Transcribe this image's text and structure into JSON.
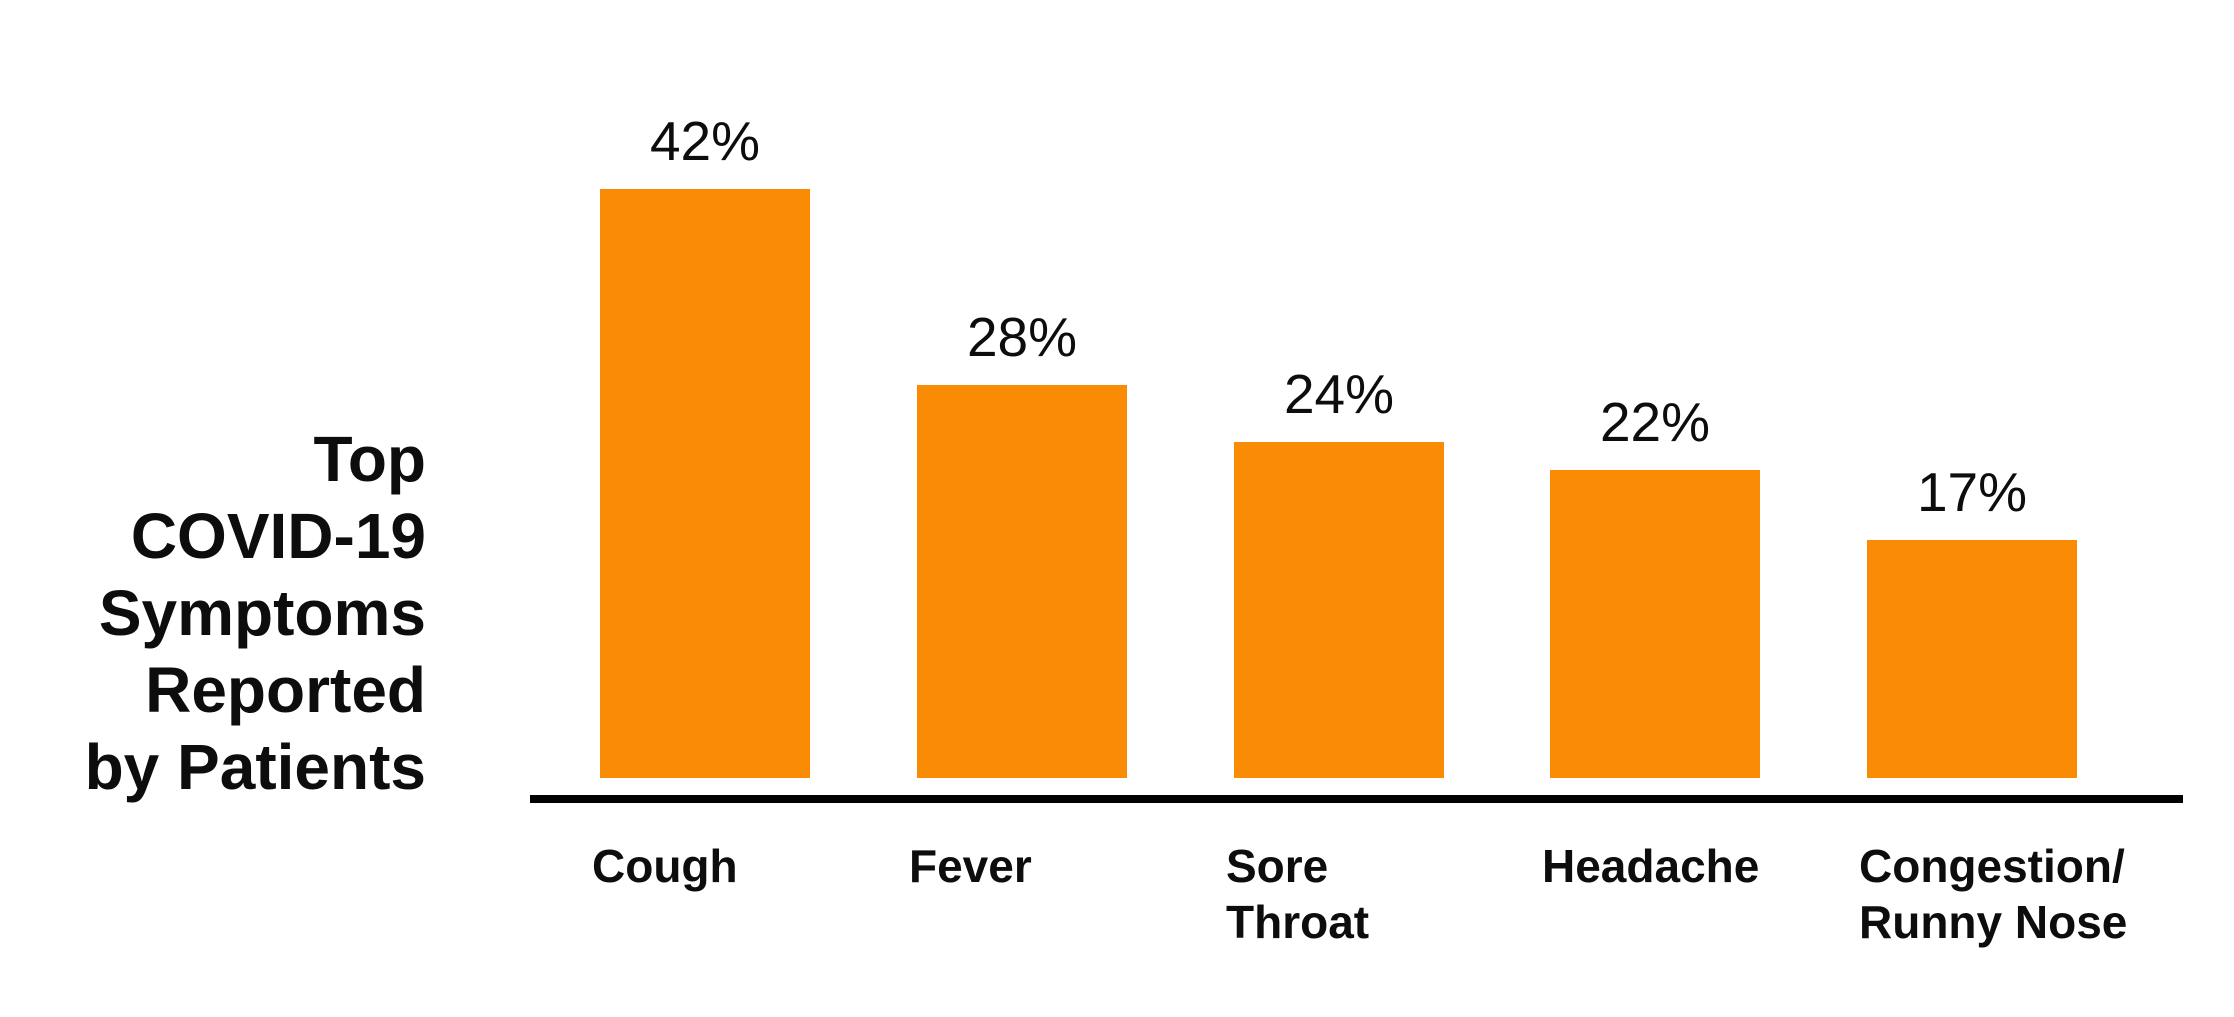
{
  "chart_data": {
    "type": "bar",
    "title": "Top COVID-19 Symptoms Reported by Patients",
    "title_display": "Top\nCOVID-19\nSymptoms\nReported\nby Patients",
    "categories": [
      "Cough",
      "Fever",
      "Sore Throat",
      "Headache",
      "Congestion/Runny Nose"
    ],
    "category_display": [
      "Cough",
      "Fever",
      "Sore\nThroat",
      "Headache",
      "Congestion/\nRunny Nose"
    ],
    "values": [
      42,
      28,
      24,
      22,
      17
    ],
    "value_labels": [
      "42%",
      "28%",
      "24%",
      "22%",
      "17%"
    ],
    "unit": "percent",
    "ylim": [
      0,
      45
    ],
    "grid": false,
    "legend": false,
    "value_label_position": "above-bar",
    "title_position": "left-of-chart",
    "xlabel": "",
    "ylabel": "",
    "colors": {
      "bar": "#FA8B05",
      "axis_line": "#000000",
      "text": "#0D0D0D",
      "background": "#FFFFFF"
    }
  }
}
